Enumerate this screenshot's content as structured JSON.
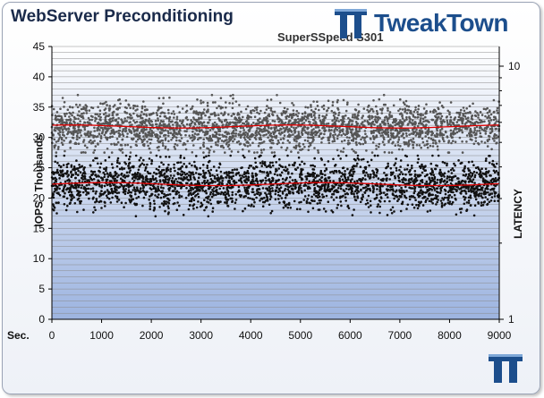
{
  "header": {
    "title": "WebServer Preconditioning",
    "subtitle": "SuperSSpeed S301",
    "brand": "TweakTown"
  },
  "chart_data": {
    "type": "scatter",
    "title": "WebServer Preconditioning",
    "subtitle": "SuperSSpeed S301",
    "xlabel": "Sec.",
    "ylabel": "IOPS - Thousands",
    "y2label": "LATENCY",
    "xlim": [
      0,
      9000
    ],
    "ylim": [
      0,
      45
    ],
    "y2_scale": "log",
    "y2_ticks": [
      "1",
      "10"
    ],
    "x_ticks": [
      0,
      1000,
      2000,
      3000,
      4000,
      5000,
      6000,
      7000,
      8000,
      9000
    ],
    "y_ticks": [
      0,
      5,
      10,
      15,
      20,
      25,
      30,
      35,
      40,
      45
    ],
    "series": [
      {
        "name": "IOPS",
        "color": "#111111",
        "mean": 22.3,
        "spread_min": 17,
        "spread_max": 27,
        "trend_color": "#e00000"
      },
      {
        "name": "Latency",
        "color": "#555555",
        "mean": 31.8,
        "spread_min": 27.5,
        "spread_max": 37,
        "trend_color": "#e00000"
      }
    ]
  },
  "colors": {
    "plot_bg_top": "#ffffff",
    "plot_bg_bottom": "#9db4e0",
    "gridline": "#8a8a8a",
    "brand": "#1c4e8c"
  }
}
